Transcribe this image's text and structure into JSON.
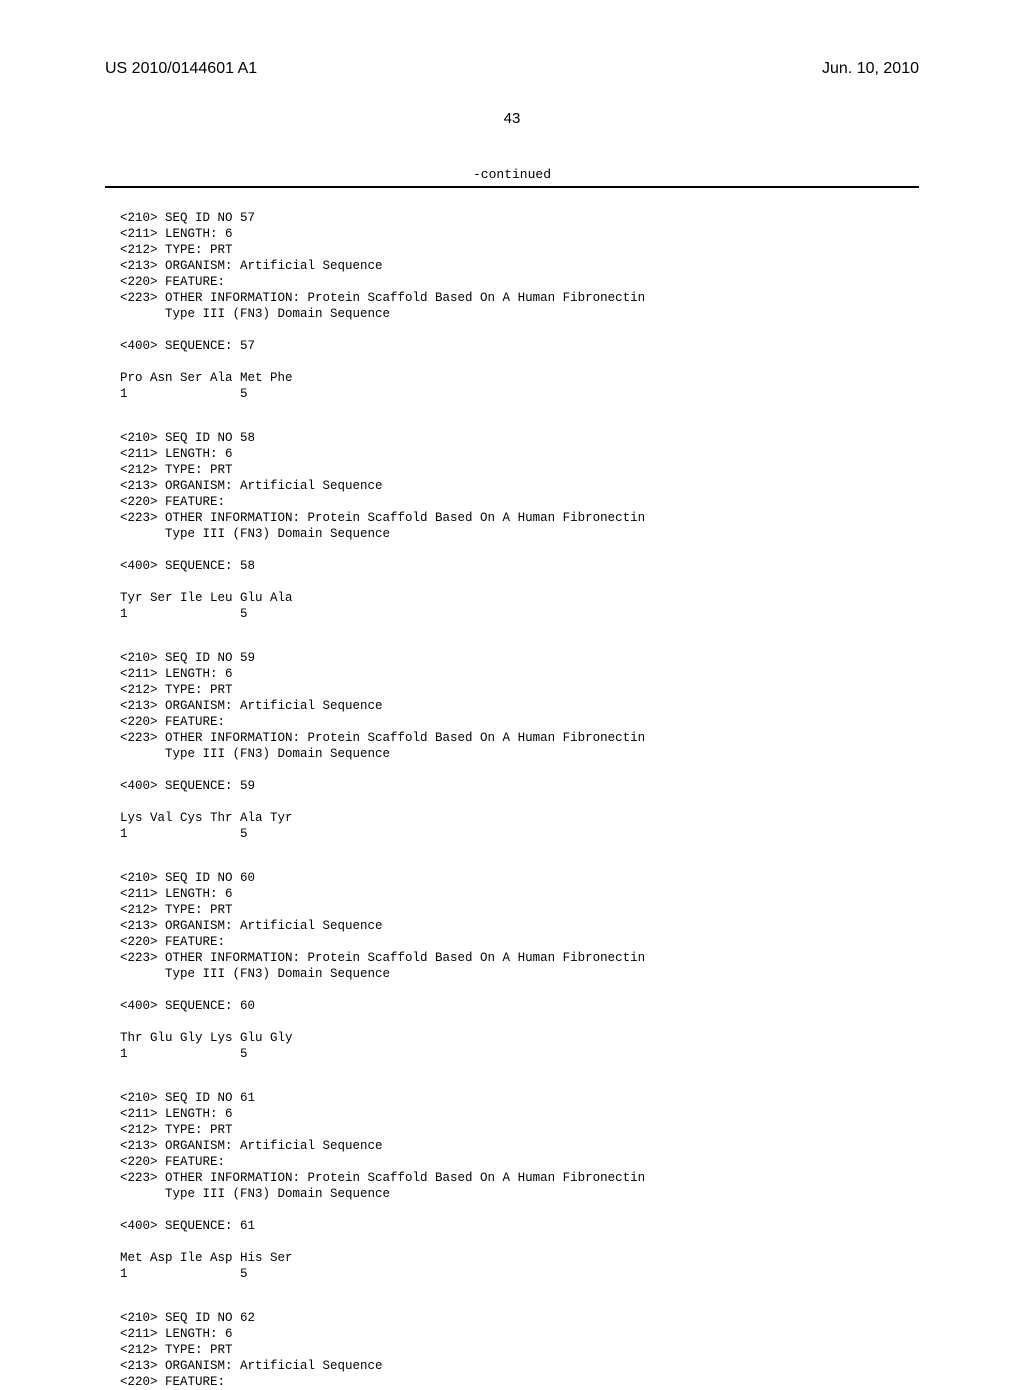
{
  "header": {
    "publication_number": "US 2010/0144601 A1",
    "publication_date": "Jun. 10, 2010"
  },
  "page_number": "43",
  "continued_label": "-continued",
  "sequences": [
    {
      "lines": [
        "<210> SEQ ID NO 57",
        "<211> LENGTH: 6",
        "<212> TYPE: PRT",
        "<213> ORGANISM: Artificial Sequence",
        "<220> FEATURE:",
        "<223> OTHER INFORMATION: Protein Scaffold Based On A Human Fibronectin",
        "      Type III (FN3) Domain Sequence",
        "",
        "<400> SEQUENCE: 57",
        "",
        "Pro Asn Ser Ala Met Phe",
        "1               5"
      ]
    },
    {
      "lines": [
        "<210> SEQ ID NO 58",
        "<211> LENGTH: 6",
        "<212> TYPE: PRT",
        "<213> ORGANISM: Artificial Sequence",
        "<220> FEATURE:",
        "<223> OTHER INFORMATION: Protein Scaffold Based On A Human Fibronectin",
        "      Type III (FN3) Domain Sequence",
        "",
        "<400> SEQUENCE: 58",
        "",
        "Tyr Ser Ile Leu Glu Ala",
        "1               5"
      ]
    },
    {
      "lines": [
        "<210> SEQ ID NO 59",
        "<211> LENGTH: 6",
        "<212> TYPE: PRT",
        "<213> ORGANISM: Artificial Sequence",
        "<220> FEATURE:",
        "<223> OTHER INFORMATION: Protein Scaffold Based On A Human Fibronectin",
        "      Type III (FN3) Domain Sequence",
        "",
        "<400> SEQUENCE: 59",
        "",
        "Lys Val Cys Thr Ala Tyr",
        "1               5"
      ]
    },
    {
      "lines": [
        "<210> SEQ ID NO 60",
        "<211> LENGTH: 6",
        "<212> TYPE: PRT",
        "<213> ORGANISM: Artificial Sequence",
        "<220> FEATURE:",
        "<223> OTHER INFORMATION: Protein Scaffold Based On A Human Fibronectin",
        "      Type III (FN3) Domain Sequence",
        "",
        "<400> SEQUENCE: 60",
        "",
        "Thr Glu Gly Lys Glu Gly",
        "1               5"
      ]
    },
    {
      "lines": [
        "<210> SEQ ID NO 61",
        "<211> LENGTH: 6",
        "<212> TYPE: PRT",
        "<213> ORGANISM: Artificial Sequence",
        "<220> FEATURE:",
        "<223> OTHER INFORMATION: Protein Scaffold Based On A Human Fibronectin",
        "      Type III (FN3) Domain Sequence",
        "",
        "<400> SEQUENCE: 61",
        "",
        "Met Asp Ile Asp His Ser",
        "1               5"
      ]
    },
    {
      "lines": [
        "<210> SEQ ID NO 62",
        "<211> LENGTH: 6",
        "<212> TYPE: PRT",
        "<213> ORGANISM: Artificial Sequence",
        "<220> FEATURE:"
      ]
    }
  ]
}
